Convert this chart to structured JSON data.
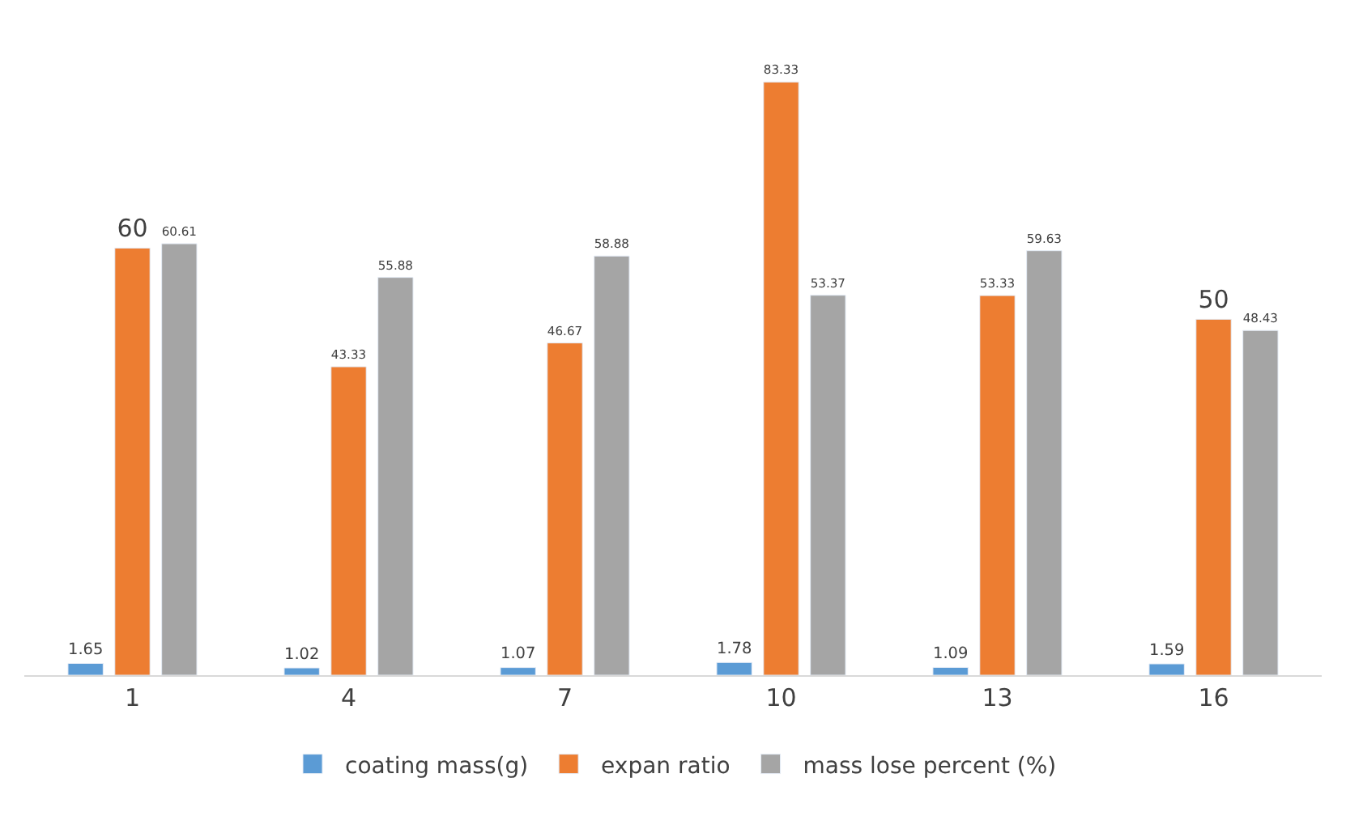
{
  "chart_data": {
    "type": "bar",
    "categories": [
      "1",
      "4",
      "7",
      "10",
      "13",
      "16"
    ],
    "series": [
      {
        "name": "coating mass(g)",
        "color": "#5b9bd5",
        "values": [
          1.65,
          1.02,
          1.07,
          1.78,
          1.09,
          1.59
        ]
      },
      {
        "name": "expan ratio",
        "color": "#ed7d31",
        "values": [
          60,
          43.33,
          46.67,
          83.33,
          53.33,
          50
        ]
      },
      {
        "name": "mass lose percent (%)",
        "color": "#a5a5a5",
        "values": [
          60.61,
          55.88,
          58.88,
          53.37,
          59.63,
          48.43
        ]
      }
    ],
    "data_labels": true,
    "grid": false,
    "legend": "bottom"
  }
}
